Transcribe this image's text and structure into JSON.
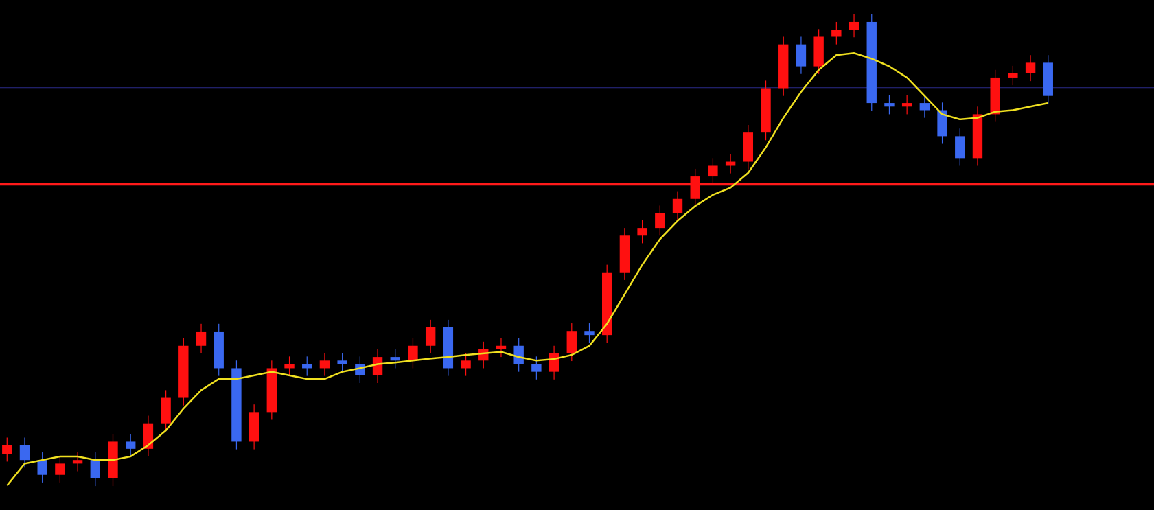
{
  "chart_data": {
    "type": "candlestick",
    "up_color": "#ff1010",
    "down_color": "#3a68f0",
    "x": [
      0,
      1,
      2,
      3,
      4,
      5,
      6,
      7,
      8,
      9,
      10,
      11,
      12,
      13,
      14,
      15,
      16,
      17,
      18,
      19,
      20,
      21,
      22,
      23,
      24,
      25,
      26,
      27,
      28,
      29,
      30,
      31,
      32,
      33,
      34,
      35,
      36,
      37,
      38,
      39,
      40,
      41,
      42,
      43,
      44,
      45,
      46,
      47,
      48,
      49,
      50,
      51,
      52,
      53,
      54,
      55,
      56,
      57,
      58,
      59
    ],
    "xlim": [
      -0.4,
      65
    ],
    "ylim": [
      0,
      100
    ],
    "open": [
      11,
      12.7,
      9.8,
      6.9,
      9.1,
      9.8,
      6.2,
      13.4,
      12,
      17,
      22,
      32.2,
      35,
      27.8,
      13.4,
      19.2,
      27.8,
      28.6,
      27.8,
      29.3,
      28.6,
      26.4,
      30,
      29.3,
      32.2,
      35.8,
      27.8,
      29.3,
      31.5,
      32.2,
      28.6,
      27.1,
      30.7,
      35.1,
      34.3,
      46.6,
      53.8,
      55.3,
      58.2,
      61,
      65.4,
      67.5,
      68.3,
      74,
      82.7,
      91.3,
      87,
      92.8,
      94.2,
      95.7,
      79.8,
      79.1,
      79.8,
      78.4,
      73.3,
      69,
      77.6,
      84.8,
      85.6,
      87.7
    ],
    "high": [
      14.2,
      14.2,
      11.3,
      10.6,
      11.3,
      11.3,
      14.9,
      14.9,
      18.5,
      23.5,
      33.7,
      36.5,
      36.5,
      29.3,
      20.7,
      29.3,
      30.1,
      30.1,
      30.8,
      30.8,
      30.1,
      31.5,
      31.5,
      33.7,
      37.3,
      37.3,
      30.8,
      33,
      33.7,
      33.7,
      30.1,
      32.2,
      36.6,
      36.6,
      48.1,
      55.3,
      56.8,
      59.7,
      62.5,
      66.9,
      69,
      69.8,
      75.5,
      84.2,
      92.8,
      92.8,
      94.3,
      95.7,
      97.2,
      97.2,
      81.3,
      81.3,
      81.3,
      79.9,
      74.8,
      79.1,
      86.3,
      87.1,
      89.2,
      89.2
    ],
    "low": [
      9.5,
      8.3,
      5.4,
      5.4,
      7.6,
      4.7,
      4.7,
      10.5,
      10.5,
      15.5,
      20.5,
      30.7,
      26.3,
      11.9,
      11.9,
      17.7,
      26.3,
      26.3,
      26.3,
      27.1,
      24.9,
      24.9,
      27.8,
      27.8,
      30.7,
      26.3,
      26.3,
      27.8,
      30,
      27.1,
      25.6,
      25.6,
      29.2,
      32.8,
      32.8,
      45.1,
      52.3,
      53.8,
      56.7,
      59.5,
      63.9,
      66,
      66.8,
      72.5,
      81.2,
      85.5,
      85.5,
      91.3,
      92.7,
      78.3,
      77.6,
      77.6,
      76.9,
      71.8,
      67.5,
      67.5,
      76.1,
      83.3,
      84.1,
      79.7
    ],
    "close": [
      12.7,
      9.8,
      6.9,
      9.1,
      9.8,
      6.2,
      13.4,
      12,
      17,
      22,
      32.2,
      35,
      27.8,
      13.4,
      19.2,
      27.8,
      28.6,
      27.8,
      29.3,
      28.6,
      26.4,
      30,
      29.3,
      32.2,
      35.8,
      27.8,
      29.3,
      31.5,
      32.2,
      28.6,
      27.1,
      30.7,
      35.1,
      34.3,
      46.6,
      53.8,
      55.3,
      58.2,
      61,
      65.4,
      67.5,
      68.3,
      74,
      82.7,
      91.3,
      87,
      92.8,
      94.2,
      95.7,
      79.8,
      79.1,
      79.8,
      78.4,
      73.3,
      69,
      77.6,
      84.8,
      85.6,
      87.7,
      81.2
    ],
    "series": [
      {
        "color": "#f0e020",
        "values": [
          4.8,
          9.1,
          9.8,
          10.5,
          10.5,
          9.8,
          9.8,
          10.5,
          12.7,
          15.6,
          19.9,
          23.5,
          25.7,
          25.7,
          26.4,
          27.1,
          26.4,
          25.7,
          25.7,
          27.1,
          27.8,
          28.6,
          28.9,
          29.3,
          29.7,
          30,
          30.4,
          30.7,
          31,
          30,
          29.3,
          29.6,
          30.4,
          32.2,
          36.5,
          42.3,
          48.1,
          53.1,
          56.7,
          59.6,
          61.8,
          63.2,
          66.1,
          71.1,
          76.9,
          82,
          86.3,
          89.2,
          89.6,
          88.5,
          87,
          84.8,
          81.2,
          77.6,
          76.6,
          76.9,
          78.1,
          78.4,
          79.1,
          79.8
        ]
      }
    ],
    "support_line": {
      "value": 63.9,
      "color": "#ff1a1a"
    },
    "level_line": {
      "value": 82.8,
      "color": "#2a2a8a"
    }
  }
}
